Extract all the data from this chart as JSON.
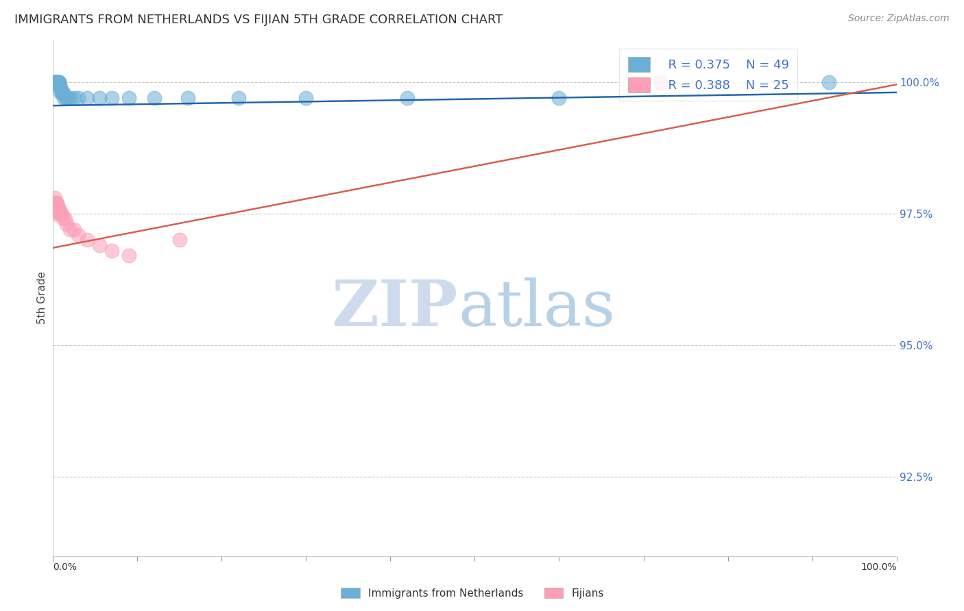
{
  "title": "IMMIGRANTS FROM NETHERLANDS VS FIJIAN 5TH GRADE CORRELATION CHART",
  "source": "Source: ZipAtlas.com",
  "ylabel": "5th Grade",
  "right_ytick_labels": [
    "100.0%",
    "97.5%",
    "95.0%",
    "92.5%"
  ],
  "right_ytick_values": [
    1.0,
    0.975,
    0.95,
    0.925
  ],
  "legend_blue_r": "R = 0.375",
  "legend_blue_n": "N = 49",
  "legend_pink_r": "R = 0.388",
  "legend_pink_n": "N = 25",
  "blue_color": "#6baed6",
  "pink_color": "#fa9fb5",
  "blue_line_color": "#2166ac",
  "pink_line_color": "#d6604d",
  "grid_color": "#c8c8c8",
  "right_axis_color": "#4472c4",
  "title_color": "#333333",
  "blue_scatter_x": [
    0.001,
    0.001,
    0.002,
    0.002,
    0.002,
    0.003,
    0.003,
    0.003,
    0.003,
    0.004,
    0.004,
    0.004,
    0.004,
    0.004,
    0.005,
    0.005,
    0.005,
    0.005,
    0.005,
    0.006,
    0.006,
    0.006,
    0.007,
    0.007,
    0.007,
    0.008,
    0.008,
    0.009,
    0.009,
    0.01,
    0.011,
    0.012,
    0.013,
    0.015,
    0.017,
    0.02,
    0.025,
    0.03,
    0.04,
    0.055,
    0.07,
    0.09,
    0.12,
    0.16,
    0.22,
    0.3,
    0.42,
    0.6,
    0.92
  ],
  "blue_scatter_y": [
    1.0,
    1.0,
    1.0,
    1.0,
    1.0,
    1.0,
    1.0,
    1.0,
    1.0,
    1.0,
    1.0,
    1.0,
    1.0,
    1.0,
    1.0,
    1.0,
    1.0,
    1.0,
    1.0,
    1.0,
    1.0,
    1.0,
    1.0,
    1.0,
    1.0,
    0.999,
    0.999,
    0.999,
    0.998,
    0.998,
    0.998,
    0.998,
    0.997,
    0.997,
    0.997,
    0.997,
    0.997,
    0.997,
    0.997,
    0.997,
    0.997,
    0.997,
    0.997,
    0.997,
    0.997,
    0.997,
    0.997,
    0.997,
    1.0
  ],
  "pink_scatter_x": [
    0.001,
    0.002,
    0.002,
    0.003,
    0.003,
    0.004,
    0.005,
    0.005,
    0.006,
    0.007,
    0.008,
    0.009,
    0.01,
    0.012,
    0.014,
    0.016,
    0.02,
    0.025,
    0.03,
    0.04,
    0.055,
    0.07,
    0.09,
    0.15,
    0.72
  ],
  "pink_scatter_y": [
    0.975,
    0.978,
    0.976,
    0.977,
    0.976,
    0.977,
    0.977,
    0.976,
    0.976,
    0.976,
    0.975,
    0.975,
    0.975,
    0.974,
    0.974,
    0.973,
    0.972,
    0.972,
    0.971,
    0.97,
    0.969,
    0.968,
    0.967,
    0.97,
    1.0
  ],
  "xlim": [
    0.0,
    1.0
  ],
  "ylim": [
    0.91,
    1.008
  ],
  "blue_trend": [
    0.9955,
    0.0025
  ],
  "pink_trend": [
    0.9685,
    0.031
  ]
}
